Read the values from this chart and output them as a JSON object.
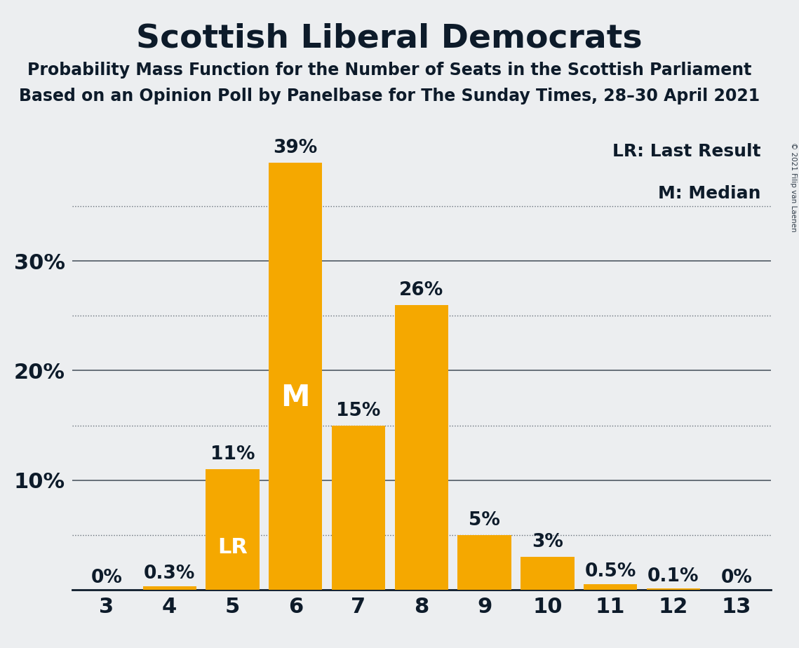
{
  "title": "Scottish Liberal Democrats",
  "subtitle1": "Probability Mass Function for the Number of Seats in the Scottish Parliament",
  "subtitle2": "Based on an Opinion Poll by Panelbase for The Sunday Times, 28–30 April 2021",
  "copyright": "© 2021 Filip van Laenen",
  "categories": [
    3,
    4,
    5,
    6,
    7,
    8,
    9,
    10,
    11,
    12,
    13
  ],
  "values": [
    0.0,
    0.3,
    11.0,
    39.0,
    15.0,
    26.0,
    5.0,
    3.0,
    0.5,
    0.1,
    0.0
  ],
  "labels": [
    "0%",
    "0.3%",
    "11%",
    "39%",
    "15%",
    "26%",
    "5%",
    "3%",
    "0.5%",
    "0.1%",
    "0%"
  ],
  "bar_color_hex": "#F5A800",
  "background_color": "#ECEEF0",
  "text_color": "#0D1B2A",
  "title_fontsize": 34,
  "subtitle_fontsize": 17,
  "label_fontsize": 19,
  "tick_fontsize": 22,
  "ytick_labels": [
    "10%",
    "20%",
    "30%"
  ],
  "ytick_values": [
    10,
    20,
    30
  ],
  "ymax": 42,
  "lr_bar": 5,
  "median_bar": 6,
  "legend_text1": "LR: Last Result",
  "legend_text2": "M: Median",
  "dotted_grid_values": [
    5,
    15,
    25,
    35
  ]
}
